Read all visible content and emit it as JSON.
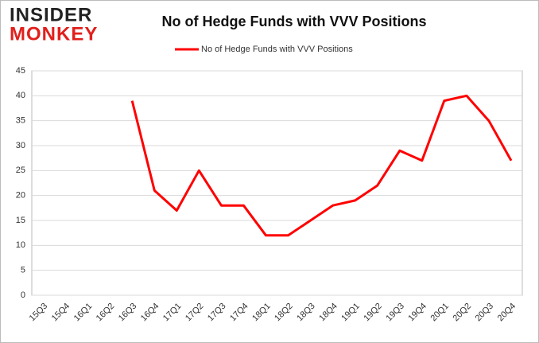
{
  "logo": {
    "line1": "INSIDER",
    "line2": "MONKEY"
  },
  "chart_data": {
    "type": "line",
    "title": "No of Hedge Funds with VVV Positions",
    "categories": [
      "15Q3",
      "15Q4",
      "16Q1",
      "16Q2",
      "16Q3",
      "16Q4",
      "17Q1",
      "17Q2",
      "17Q3",
      "17Q4",
      "18Q1",
      "18Q2",
      "18Q3",
      "18Q4",
      "19Q1",
      "19Q2",
      "19Q3",
      "19Q4",
      "20Q1",
      "20Q2",
      "20Q3",
      "20Q4"
    ],
    "series": [
      {
        "name": "No of Hedge Funds with VVV Positions",
        "color": "#ff0000",
        "values": [
          null,
          null,
          null,
          null,
          39,
          21,
          17,
          25,
          18,
          18,
          12,
          12,
          15,
          18,
          19,
          22,
          29,
          27,
          39,
          40,
          35,
          27
        ]
      }
    ],
    "ylim": [
      0,
      45
    ],
    "yticks": [
      0,
      5,
      10,
      15,
      20,
      25,
      30,
      35,
      40,
      45
    ],
    "grid": true,
    "legend": "top"
  }
}
